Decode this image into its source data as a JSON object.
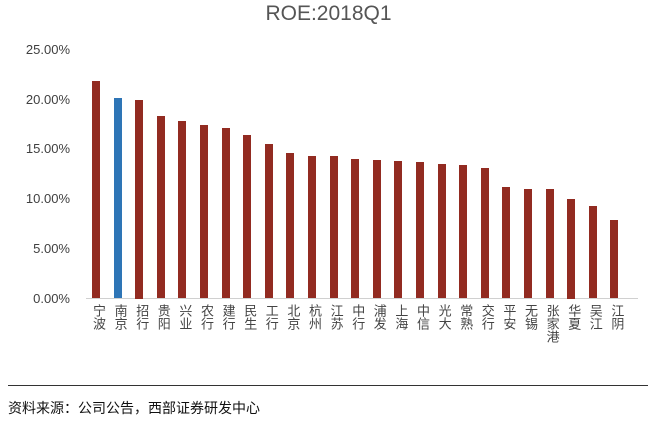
{
  "chart_data": {
    "type": "bar",
    "title": "ROE:2018Q1",
    "xlabel": "",
    "ylabel": "",
    "ylim": [
      0,
      25
    ],
    "yticks": [
      "0.00%",
      "5.00%",
      "10.00%",
      "15.00%",
      "20.00%",
      "25.00%"
    ],
    "grid": false,
    "legend": null,
    "categories": [
      "宁波",
      "南京",
      "招行",
      "贵阳",
      "兴业",
      "农行",
      "建行",
      "民生",
      "工行",
      "北京",
      "杭州",
      "江苏",
      "中行",
      "浦发",
      "上海",
      "中信",
      "光大",
      "常熟",
      "交行",
      "平安",
      "无锡",
      "张家港",
      "华夏",
      "吴江",
      "江阴"
    ],
    "values": [
      21.9,
      20.2,
      20.0,
      18.3,
      17.8,
      17.4,
      17.1,
      16.4,
      15.5,
      14.6,
      14.3,
      14.3,
      14.0,
      13.9,
      13.8,
      13.7,
      13.5,
      13.4,
      13.1,
      11.2,
      11.0,
      11.0,
      10.0,
      9.3,
      7.9
    ],
    "unit": "%",
    "highlight": "南京",
    "colors": {
      "default": "#922B21",
      "highlight": "#2E75B6"
    }
  },
  "footer": {
    "source": "资料来源：公司公告，西部证券研发中心"
  }
}
